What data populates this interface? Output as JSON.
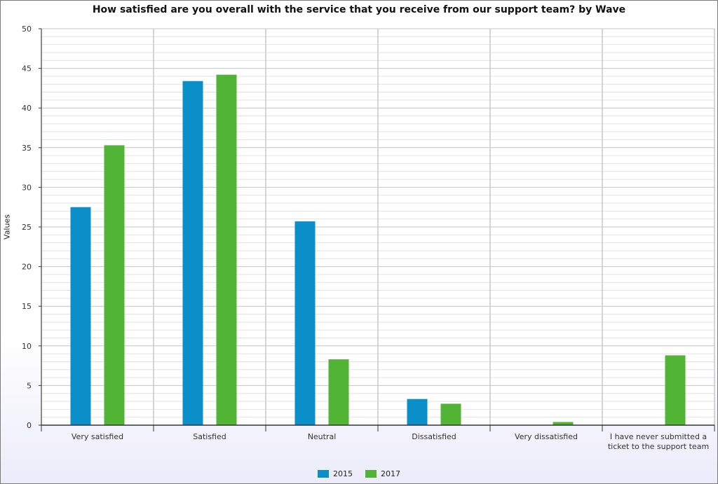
{
  "chart_data": {
    "type": "bar",
    "title": "How satisfied are you overall with the service that you receive from our support team? by Wave",
    "xlabel": "",
    "ylabel": "Values",
    "ylim": [
      0,
      50
    ],
    "yticks": [
      0,
      5,
      10,
      15,
      20,
      25,
      30,
      35,
      40,
      45,
      50
    ],
    "grid": true,
    "legend_position": "bottom",
    "categories": [
      [
        "Very satisfied"
      ],
      [
        "Satisfied"
      ],
      [
        "Neutral"
      ],
      [
        "Dissatisfied"
      ],
      [
        "Very dissatisfied"
      ],
      [
        "I have never submitted a",
        "ticket to the support team"
      ]
    ],
    "series": [
      {
        "name": "2015",
        "color": "#0a8fc8",
        "values": [
          27.5,
          43.4,
          25.7,
          3.3,
          0,
          0
        ]
      },
      {
        "name": "2017",
        "color": "#52b435",
        "values": [
          35.3,
          44.2,
          8.3,
          2.7,
          0.4,
          8.8
        ]
      }
    ]
  }
}
